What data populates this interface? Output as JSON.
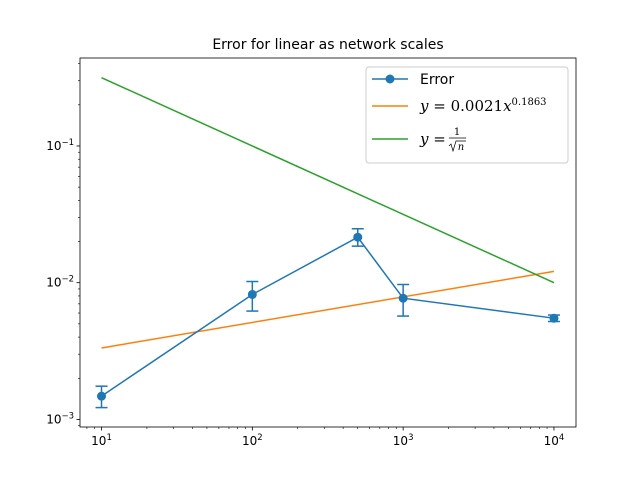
{
  "chart_data": {
    "type": "line",
    "title": "Error for linear as network scales",
    "xscale": "log",
    "yscale": "log",
    "xlim": [
      7.2,
      14000
    ],
    "ylim": [
      0.00088,
      0.44
    ],
    "grid": false,
    "legend_position": "top-right",
    "x_ticks": [
      {
        "base": "10",
        "exp": "1",
        "value": 10
      },
      {
        "base": "10",
        "exp": "2",
        "value": 100
      },
      {
        "base": "10",
        "exp": "3",
        "value": 1000
      },
      {
        "base": "10",
        "exp": "4",
        "value": 10000
      }
    ],
    "y_ticks": [
      {
        "base": "10",
        "exp": "−3",
        "value": 0.001
      },
      {
        "base": "10",
        "exp": "−2",
        "value": 0.01
      },
      {
        "base": "10",
        "exp": "−1",
        "value": 0.1
      }
    ],
    "series": [
      {
        "name": "Error",
        "color": "#1f77b4",
        "marker": "circle",
        "x": [
          10,
          100,
          500,
          1000,
          10000
        ],
        "y": [
          0.00148,
          0.0082,
          0.0215,
          0.0077,
          0.0055
        ],
        "y_err_low": [
          0.00122,
          0.0062,
          0.0185,
          0.0057,
          0.0052
        ],
        "y_err_high": [
          0.00175,
          0.0102,
          0.0248,
          0.0097,
          0.0058
        ]
      },
      {
        "name": "y = 0.0021x^0.1863",
        "color": "#ff7f0e",
        "x": [
          10,
          10000
        ],
        "y": [
          0.00333,
          0.0121
        ]
      },
      {
        "name": "y = 1/√n",
        "color": "#2ca02c",
        "x": [
          10,
          10000
        ],
        "y": [
          0.316,
          0.01
        ]
      }
    ],
    "legend": {
      "error_label": "Error",
      "fit_prefix": "y",
      "fit_eq": " = 0.0021",
      "fit_var": "x",
      "fit_exp": "0.1863",
      "inv_prefix": "y",
      "inv_eq": " = ",
      "inv_num": "1",
      "inv_den": "n"
    }
  }
}
